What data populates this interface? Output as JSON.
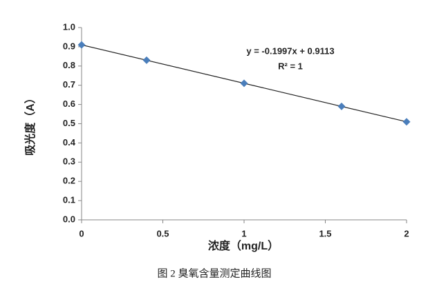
{
  "chart_data": {
    "type": "scatter",
    "x": [
      0,
      0.4,
      1,
      1.6,
      2
    ],
    "values": [
      0.91,
      0.83,
      0.71,
      0.59,
      0.51
    ],
    "color": "#4a7ebb",
    "xlabel": "浓度（mg/L）",
    "ylabel": "吸光度（A）",
    "xlim": [
      0,
      2
    ],
    "xticks": [
      0,
      0.5,
      1,
      1.5,
      2
    ],
    "ylim": [
      0,
      1
    ],
    "yticks": [
      {
        "value": 0,
        "label": "0.0"
      },
      0.1,
      0.2,
      0.3,
      0.4,
      0.5,
      0.6,
      0.7,
      0.8,
      0.9,
      {
        "value": 1,
        "label": "1.0"
      }
    ],
    "grid": false,
    "trendline": {
      "equation": "y = -0.1997x + 0.9113",
      "r2": "R² = 1"
    },
    "caption": "图 2 臭氧含量测定曲线图"
  }
}
